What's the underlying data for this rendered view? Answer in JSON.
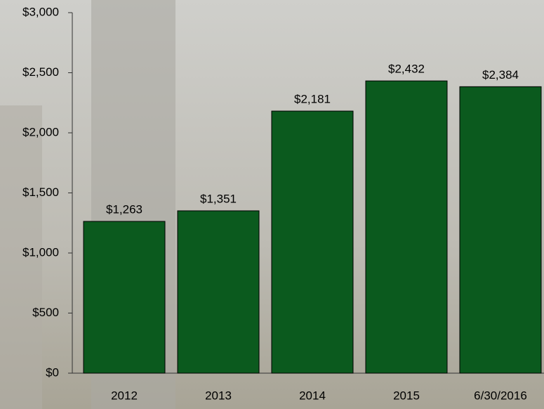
{
  "chart_data": {
    "type": "bar",
    "categories": [
      "2012",
      "2013",
      "2014",
      "2015",
      "6/30/2016"
    ],
    "values": [
      1263,
      1351,
      2181,
      2432,
      2384
    ],
    "value_labels": [
      "$1,263",
      "$1,351",
      "$2,181",
      "$2,432",
      "$2,384"
    ],
    "color": "#0b5a1e",
    "ylim": [
      0,
      3000
    ],
    "yticks": [
      {
        "value": 0,
        "label": "$0"
      },
      {
        "value": 500,
        "label": "$500"
      },
      {
        "value": 1000,
        "label": "$1,000"
      },
      {
        "value": 1500,
        "label": "$1,500"
      },
      {
        "value": 2000,
        "label": "$2,000"
      },
      {
        "value": 2500,
        "label": "$2,500"
      },
      {
        "value": 3000,
        "label": "$3,000"
      }
    ],
    "grid": false
  }
}
